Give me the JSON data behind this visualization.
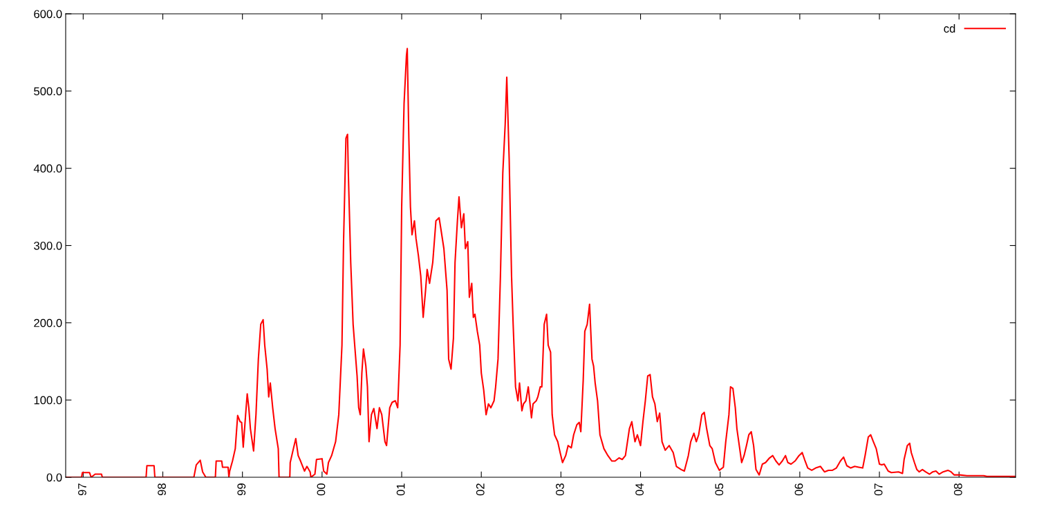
{
  "chart_data": {
    "type": "line",
    "xlim": [
      1996.78,
      2008.71
    ],
    "ylim": [
      0,
      600
    ],
    "xticks": [
      {
        "value": 1997,
        "label": "97"
      },
      {
        "value": 1998,
        "label": "98"
      },
      {
        "value": 1999,
        "label": "99"
      },
      {
        "value": 2000,
        "label": "00"
      },
      {
        "value": 2001,
        "label": "01"
      },
      {
        "value": 2002,
        "label": "02"
      },
      {
        "value": 2003,
        "label": "03"
      },
      {
        "value": 2004,
        "label": "04"
      },
      {
        "value": 2005,
        "label": "05"
      },
      {
        "value": 2006,
        "label": "06"
      },
      {
        "value": 2007,
        "label": "07"
      },
      {
        "value": 2008,
        "label": "08"
      }
    ],
    "yticks": [
      {
        "value": 0,
        "label": "0.0"
      },
      {
        "value": 100,
        "label": "100.0"
      },
      {
        "value": 200,
        "label": "200.0"
      },
      {
        "value": 300,
        "label": "300.0"
      },
      {
        "value": 400,
        "label": "400.0"
      },
      {
        "value": 500,
        "label": "500.0"
      },
      {
        "value": 600,
        "label": "600.0"
      }
    ],
    "grid": false,
    "legend": "top right",
    "marker": "none",
    "line_style": "solid",
    "series": [
      {
        "name": "cd",
        "color": "#ff0000",
        "x": [
          1996.78,
          1996.98,
          1996.99,
          1997.08,
          1997.1,
          1997.15,
          1997.23,
          1997.24,
          1997.79,
          1997.8,
          1997.89,
          1997.9,
          1998.39,
          1998.42,
          1998.47,
          1998.5,
          1998.54,
          1998.66,
          1998.67,
          1998.74,
          1998.75,
          1998.82,
          1998.83,
          1998.84,
          1998.875,
          1998.91,
          1998.94,
          1998.97,
          1998.99,
          1999.01,
          1999.04,
          1999.06,
          1999.08,
          1999.1,
          1999.14,
          1999.17,
          1999.2,
          1999.23,
          1999.26,
          1999.28,
          1999.31,
          1999.33,
          1999.35,
          1999.38,
          1999.41,
          1999.45,
          1999.46,
          1999.595,
          1999.6,
          1999.64,
          1999.67,
          1999.7,
          1999.73,
          1999.78,
          1999.81,
          1999.85,
          1999.86,
          1999.91,
          1999.93,
          2000.0,
          2000.02,
          2000.06,
          2000.08,
          2000.12,
          2000.17,
          2000.21,
          2000.25,
          2000.27,
          2000.3,
          2000.32,
          2000.33,
          2000.36,
          2000.39,
          2000.41,
          2000.44,
          2000.46,
          2000.48,
          2000.5,
          2000.52,
          2000.55,
          2000.57,
          2000.59,
          2000.62,
          2000.65,
          2000.69,
          2000.72,
          2000.75,
          2000.79,
          2000.81,
          2000.85,
          2000.88,
          2000.92,
          2000.95,
          2000.98,
          2001.0,
          2001.03,
          2001.06,
          2001.07,
          2001.09,
          2001.11,
          2001.13,
          2001.16,
          2001.18,
          2001.21,
          2001.24,
          2001.27,
          2001.3,
          2001.32,
          2001.35,
          2001.39,
          2001.43,
          2001.47,
          2001.49,
          2001.53,
          2001.57,
          2001.59,
          2001.62,
          2001.65,
          2001.67,
          2001.7,
          2001.72,
          2001.75,
          2001.78,
          2001.8,
          2001.83,
          2001.85,
          2001.88,
          2001.9,
          2001.92,
          2001.95,
          2001.98,
          2002.0,
          2002.03,
          2002.06,
          2002.09,
          2002.12,
          2002.16,
          2002.18,
          2002.21,
          2002.24,
          2002.27,
          2002.3,
          2002.32,
          2002.35,
          2002.38,
          2002.4,
          2002.43,
          2002.46,
          2002.48,
          2002.51,
          2002.53,
          2002.56,
          2002.59,
          2002.63,
          2002.65,
          2002.69,
          2002.71,
          2002.74,
          2002.76,
          2002.79,
          2002.82,
          2002.84,
          2002.87,
          2002.89,
          2002.92,
          2002.96,
          2002.99,
          2003.02,
          2003.06,
          2003.09,
          2003.13,
          2003.16,
          2003.2,
          2003.23,
          2003.25,
          2003.28,
          2003.3,
          2003.33,
          2003.36,
          2003.39,
          2003.41,
          2003.43,
          2003.46,
          2003.49,
          2003.54,
          2003.59,
          2003.64,
          2003.68,
          2003.73,
          2003.77,
          2003.81,
          2003.86,
          2003.89,
          2003.93,
          2003.96,
          2004.0,
          2004.03,
          2004.06,
          2004.09,
          2004.12,
          2004.15,
          2004.18,
          2004.21,
          2004.24,
          2004.27,
          2004.31,
          2004.36,
          2004.41,
          2004.45,
          2004.51,
          2004.55,
          2004.6,
          2004.63,
          2004.67,
          2004.7,
          2004.73,
          2004.77,
          2004.8,
          2004.83,
          2004.87,
          2004.9,
          2004.94,
          2004.99,
          2005.04,
          2005.07,
          2005.11,
          2005.13,
          2005.16,
          2005.19,
          2005.21,
          2005.24,
          2005.27,
          2005.3,
          2005.33,
          2005.36,
          2005.39,
          2005.42,
          2005.45,
          2005.49,
          2005.53,
          2005.57,
          2005.62,
          2005.66,
          2005.7,
          2005.74,
          2005.78,
          2005.82,
          2005.85,
          2005.89,
          2005.94,
          2005.99,
          2006.03,
          2006.06,
          2006.1,
          2006.15,
          2006.2,
          2006.26,
          2006.31,
          2006.36,
          2006.41,
          2006.46,
          2006.51,
          2006.55,
          2006.59,
          2006.64,
          2006.69,
          2006.74,
          2006.79,
          2006.82,
          2006.86,
          2006.89,
          2006.92,
          2006.96,
          2007.0,
          2007.03,
          2007.06,
          2007.11,
          2007.15,
          2007.24,
          2007.29,
          2007.31,
          2007.35,
          2007.38,
          2007.4,
          2007.44,
          2007.47,
          2007.5,
          2007.54,
          2007.58,
          2007.63,
          2007.67,
          2007.71,
          2007.75,
          2007.8,
          2007.86,
          2007.9,
          2007.94,
          2008.01,
          2008.1,
          2008.31,
          2008.35,
          2008.71
        ],
        "values": [
          0,
          0,
          6,
          6,
          0,
          4,
          4,
          0,
          0,
          15,
          15,
          0,
          0,
          16,
          22,
          7,
          0,
          0,
          21,
          21,
          13,
          13,
          0,
          8,
          21,
          37,
          80,
          72,
          71,
          39,
          81,
          108,
          90,
          63,
          34,
          81,
          153,
          198,
          204,
          171,
          140,
          104,
          122,
          90,
          63,
          37,
          0,
          0,
          19,
          37,
          50,
          28,
          21,
          8,
          14,
          7,
          0,
          4,
          23,
          24,
          8,
          4,
          19,
          28,
          46,
          81,
          171,
          305,
          439,
          444,
          394,
          278,
          198,
          171,
          131,
          90,
          81,
          135,
          166,
          144,
          117,
          46,
          81,
          89,
          63,
          90,
          81,
          46,
          41,
          90,
          97,
          99,
          90,
          171,
          350,
          484,
          546,
          555,
          439,
          350,
          314,
          332,
          309,
          287,
          260,
          207,
          242,
          269,
          251,
          278,
          332,
          336,
          323,
          296,
          242,
          153,
          140,
          180,
          278,
          332,
          363,
          323,
          341,
          296,
          305,
          233,
          251,
          207,
          211,
          189,
          171,
          135,
          113,
          81,
          95,
          90,
          99,
          117,
          153,
          260,
          394,
          457,
          518,
          412,
          260,
          198,
          117,
          99,
          122,
          86,
          95,
          99,
          117,
          77,
          95,
          99,
          104,
          117,
          117,
          198,
          211,
          171,
          162,
          81,
          55,
          46,
          32,
          19,
          28,
          41,
          38,
          55,
          68,
          71,
          59,
          126,
          189,
          198,
          224,
          153,
          144,
          122,
          99,
          55,
          37,
          28,
          21,
          21,
          25,
          23,
          28,
          63,
          72,
          46,
          55,
          41,
          72,
          99,
          131,
          133,
          104,
          95,
          72,
          83,
          46,
          35,
          41,
          32,
          14,
          10,
          8,
          28,
          46,
          57,
          46,
          55,
          81,
          84,
          63,
          41,
          37,
          19,
          9,
          13,
          46,
          81,
          117,
          115,
          90,
          63,
          41,
          19,
          28,
          41,
          55,
          59,
          41,
          10,
          3,
          17,
          19,
          25,
          28,
          21,
          16,
          21,
          28,
          19,
          17,
          21,
          28,
          32,
          23,
          12,
          9,
          12,
          14,
          7,
          9,
          9,
          12,
          21,
          26,
          15,
          12,
          14,
          13,
          12,
          28,
          52,
          55,
          47,
          37,
          17,
          16,
          17,
          8,
          6,
          7,
          5,
          23,
          41,
          44,
          32,
          19,
          10,
          7,
          10,
          7,
          4,
          7,
          8,
          4,
          7,
          9,
          7,
          3,
          3,
          2,
          2,
          1,
          1
        ]
      }
    ]
  }
}
